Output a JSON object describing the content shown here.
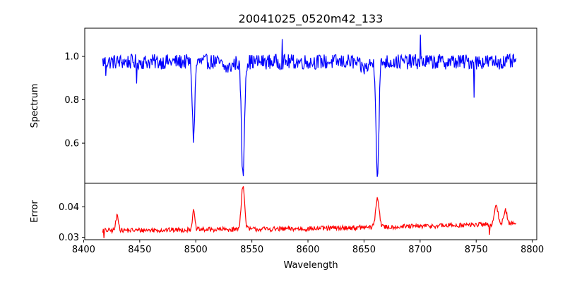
{
  "chart_data": {
    "type": "line",
    "title": "20041025_0520m42_133",
    "xlabel": "Wavelength",
    "x_ticks": [
      8400,
      8450,
      8500,
      8550,
      8600,
      8650,
      8700,
      8750,
      8800
    ],
    "xlim": [
      8401,
      8804
    ],
    "panels": [
      {
        "name": "spectrum-panel",
        "ylabel": "Spectrum",
        "ylim": [
          0.415,
          1.13
        ],
        "y_ticks": [
          0.6,
          0.8,
          1.0
        ],
        "y_tick_labels": [
          "0.6",
          "0.8",
          "1.0"
        ],
        "color": "#0000ff",
        "x_range": [
          8417,
          8786
        ],
        "baseline": 0.975,
        "noise": 0.035,
        "features": [
          {
            "center": 8498,
            "depth": 0.35,
            "width": 1.1
          },
          {
            "center": 8542,
            "depth": 0.53,
            "width": 1.3
          },
          {
            "center": 8662,
            "depth": 0.53,
            "width": 1.2
          },
          {
            "center": 8528,
            "depth": 0.03,
            "width": 4
          },
          {
            "center": 8650,
            "depth": 0.03,
            "width": 4
          }
        ],
        "spikes": [
          {
            "x": 8420,
            "y": 0.91
          },
          {
            "x": 8447,
            "y": 0.875
          },
          {
            "x": 8577,
            "y": 1.08
          },
          {
            "x": 8700,
            "y": 1.1
          },
          {
            "x": 8748,
            "y": 0.81
          }
        ]
      },
      {
        "name": "error-panel",
        "ylabel": "Error",
        "ylim": [
          0.0292,
          0.0477
        ],
        "y_ticks": [
          0.03,
          0.04
        ],
        "y_tick_labels": [
          "0.03",
          "0.04"
        ],
        "color": "#ff0000",
        "x_range": [
          8417,
          8786
        ],
        "baseline": 0.0322,
        "noise": 0.0008,
        "trend": [
          [
            8417,
            0.0322
          ],
          [
            8600,
            0.0328
          ],
          [
            8700,
            0.0336
          ],
          [
            8786,
            0.0345
          ]
        ],
        "features": [
          {
            "center": 8430,
            "depth": -0.005,
            "width": 1.2
          },
          {
            "center": 8498,
            "depth": -0.006,
            "width": 1.1
          },
          {
            "center": 8542,
            "depth": -0.0142,
            "width": 1.5
          },
          {
            "center": 8662,
            "depth": -0.0095,
            "width": 1.6
          },
          {
            "center": 8768,
            "depth": -0.006,
            "width": 1.5
          },
          {
            "center": 8776,
            "depth": -0.0045,
            "width": 1.5
          }
        ],
        "spikes": [
          {
            "x": 8762,
            "y": 0.0308
          },
          {
            "x": 8418,
            "y": 0.0297
          }
        ]
      }
    ]
  }
}
